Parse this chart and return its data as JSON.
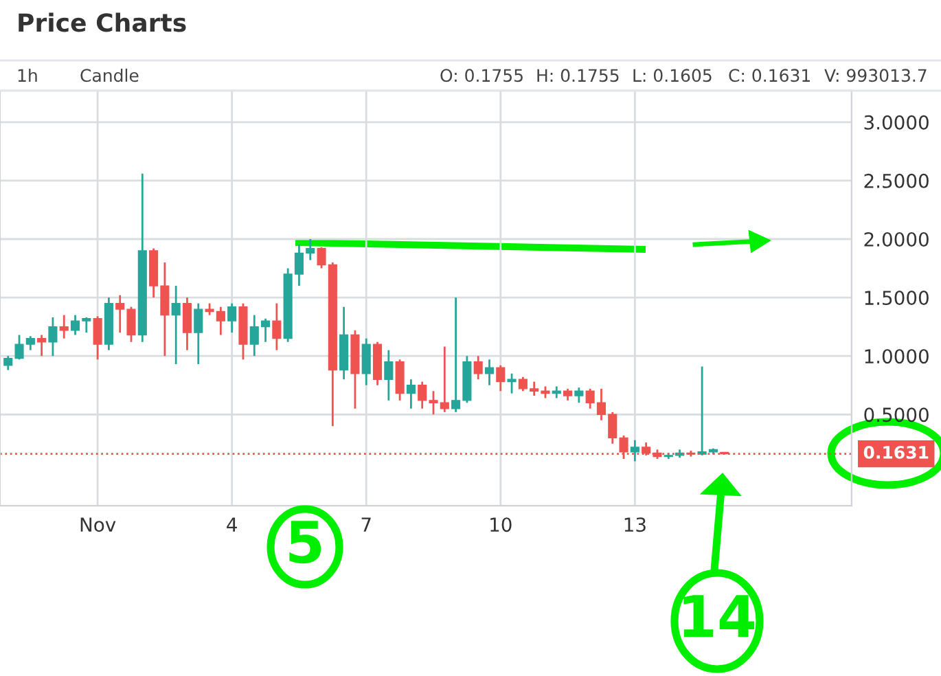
{
  "chart_data": {
    "type": "candlestick",
    "title": "Price Charts",
    "annotations": [
      "1h",
      "Candle",
      "O: 0.1755",
      "H: 0.1755",
      "L: 0.1605",
      "C: 0.1631",
      "V: 993013.7",
      "5",
      "14"
    ],
    "x": [
      -1.0,
      -0.75,
      -0.5,
      -0.25,
      0.0,
      0.25,
      0.5,
      0.75,
      1.0,
      1.25,
      1.5,
      1.75,
      2.0,
      2.25,
      2.5,
      2.75,
      3.0,
      3.25,
      3.5,
      3.75,
      4.0,
      4.25,
      4.5,
      4.75,
      5.0,
      5.25,
      5.5,
      5.75,
      6.0,
      6.25,
      6.5,
      6.75,
      7.0,
      7.25,
      7.5,
      7.75,
      8.0,
      8.25,
      8.5,
      8.75,
      9.0,
      9.25,
      9.5,
      9.75,
      10.0,
      10.25,
      10.5,
      10.75,
      11.0,
      11.25,
      11.5,
      11.75,
      12.0,
      12.25,
      12.5,
      12.75,
      13.0,
      13.25,
      13.5,
      13.75,
      14.0,
      14.25,
      14.5,
      14.75,
      15.0
    ],
    "ohlc": [
      [
        0.92,
        1.0,
        0.88,
        0.98
      ],
      [
        0.98,
        1.18,
        0.97,
        1.1
      ],
      [
        1.1,
        1.17,
        1.05,
        1.15
      ],
      [
        1.15,
        1.18,
        1.0,
        1.12
      ],
      [
        1.12,
        1.33,
        1.0,
        1.25
      ],
      [
        1.25,
        1.35,
        1.15,
        1.22
      ],
      [
        1.22,
        1.35,
        1.18,
        1.3
      ],
      [
        1.3,
        1.33,
        1.2,
        1.32
      ],
      [
        1.32,
        1.34,
        0.97,
        1.1
      ],
      [
        1.1,
        1.5,
        1.05,
        1.45
      ],
      [
        1.45,
        1.52,
        1.2,
        1.4
      ],
      [
        1.4,
        1.42,
        1.12,
        1.18
      ],
      [
        1.18,
        2.56,
        1.12,
        1.9
      ],
      [
        1.9,
        1.92,
        1.5,
        1.6
      ],
      [
        1.6,
        1.8,
        1.0,
        1.35
      ],
      [
        1.35,
        1.6,
        0.93,
        1.45
      ],
      [
        1.45,
        1.5,
        1.05,
        1.2
      ],
      [
        1.2,
        1.45,
        0.93,
        1.4
      ],
      [
        1.4,
        1.45,
        1.35,
        1.38
      ],
      [
        1.38,
        1.42,
        1.18,
        1.3
      ],
      [
        1.3,
        1.45,
        1.2,
        1.42
      ],
      [
        1.42,
        1.45,
        0.97,
        1.1
      ],
      [
        1.1,
        1.35,
        1.0,
        1.25
      ],
      [
        1.25,
        1.32,
        1.12,
        1.3
      ],
      [
        1.3,
        1.45,
        1.05,
        1.15
      ],
      [
        1.15,
        1.75,
        1.12,
        1.7
      ],
      [
        1.7,
        1.95,
        1.6,
        1.88
      ],
      [
        1.88,
        2.0,
        1.82,
        1.92
      ],
      [
        1.92,
        1.93,
        1.75,
        1.78
      ],
      [
        1.78,
        1.8,
        0.4,
        0.88
      ],
      [
        0.88,
        1.42,
        0.8,
        1.18
      ],
      [
        1.18,
        1.22,
        0.55,
        0.85
      ],
      [
        0.85,
        1.15,
        0.75,
        1.1
      ],
      [
        1.1,
        1.12,
        0.75,
        0.8
      ],
      [
        0.8,
        1.05,
        0.62,
        0.95
      ],
      [
        0.95,
        0.97,
        0.62,
        0.68
      ],
      [
        0.68,
        0.8,
        0.55,
        0.75
      ],
      [
        0.75,
        0.78,
        0.55,
        0.62
      ],
      [
        0.62,
        0.7,
        0.5,
        0.6
      ],
      [
        0.6,
        1.08,
        0.52,
        0.55
      ],
      [
        0.55,
        1.5,
        0.52,
        0.62
      ],
      [
        0.62,
        1.0,
        0.6,
        0.95
      ],
      [
        0.95,
        1.0,
        0.8,
        0.85
      ],
      [
        0.85,
        0.97,
        0.75,
        0.9
      ],
      [
        0.9,
        0.92,
        0.7,
        0.78
      ],
      [
        0.78,
        0.85,
        0.68,
        0.8
      ],
      [
        0.8,
        0.82,
        0.7,
        0.72
      ],
      [
        0.72,
        0.78,
        0.66,
        0.7
      ],
      [
        0.7,
        0.74,
        0.64,
        0.68
      ],
      [
        0.68,
        0.74,
        0.64,
        0.7
      ],
      [
        0.7,
        0.72,
        0.62,
        0.66
      ],
      [
        0.66,
        0.73,
        0.6,
        0.7
      ],
      [
        0.7,
        0.72,
        0.55,
        0.6
      ],
      [
        0.6,
        0.72,
        0.45,
        0.5
      ],
      [
        0.5,
        0.52,
        0.25,
        0.3
      ],
      [
        0.3,
        0.32,
        0.12,
        0.18
      ],
      [
        0.18,
        0.28,
        0.1,
        0.22
      ],
      [
        0.22,
        0.26,
        0.15,
        0.17
      ],
      [
        0.17,
        0.2,
        0.12,
        0.14
      ],
      [
        0.14,
        0.17,
        0.12,
        0.15
      ],
      [
        0.15,
        0.2,
        0.13,
        0.17
      ],
      [
        0.17,
        0.19,
        0.14,
        0.16
      ],
      [
        0.16,
        0.91,
        0.15,
        0.18
      ],
      [
        0.18,
        0.21,
        0.16,
        0.2
      ],
      [
        0.1755,
        0.1755,
        0.1605,
        0.1631
      ]
    ],
    "colors": [
      "#26a69a",
      "#26a69a",
      "#26a69a",
      "#ef5350",
      "#26a69a",
      "#ef5350",
      "#26a69a",
      "#26a69a",
      "#ef5350",
      "#26a69a",
      "#ef5350",
      "#ef5350",
      "#26a69a",
      "#ef5350",
      "#ef5350",
      "#26a69a",
      "#ef5350",
      "#26a69a",
      "#ef5350",
      "#ef5350",
      "#26a69a",
      "#ef5350",
      "#26a69a",
      "#26a69a",
      "#ef5350",
      "#26a69a",
      "#26a69a",
      "#26a69a",
      "#ef5350",
      "#ef5350",
      "#26a69a",
      "#ef5350",
      "#26a69a",
      "#ef5350",
      "#26a69a",
      "#ef5350",
      "#26a69a",
      "#ef5350",
      "#ef5350",
      "#ef5350",
      "#26a69a",
      "#26a69a",
      "#ef5350",
      "#26a69a",
      "#ef5350",
      "#26a69a",
      "#ef5350",
      "#ef5350",
      "#ef5350",
      "#26a69a",
      "#ef5350",
      "#26a69a",
      "#ef5350",
      "#ef5350",
      "#ef5350",
      "#ef5350",
      "#26a69a",
      "#ef5350",
      "#ef5350",
      "#26a69a",
      "#26a69a",
      "#ef5350",
      "#26a69a",
      "#26a69a",
      "#ef5350"
    ],
    "xlim": [
      -1.18,
      17.84
    ],
    "xticks": [
      {
        "value": 1,
        "label": "Nov"
      },
      {
        "value": 4,
        "label": "4"
      },
      {
        "value": 7,
        "label": "7"
      },
      {
        "value": 10,
        "label": "10"
      },
      {
        "value": 13,
        "label": "13"
      }
    ],
    "ylim": [
      -0.28,
      3.27
    ],
    "yticks": [
      {
        "value": 0.5,
        "label": "0.5000"
      },
      {
        "value": 1.0,
        "label": "1.0000"
      },
      {
        "value": 1.5,
        "label": "1.5000"
      },
      {
        "value": 2.0,
        "label": "2.0000"
      },
      {
        "value": 2.5,
        "label": "2.5000"
      },
      {
        "value": 3.0,
        "label": "3.0000"
      }
    ],
    "ref_lines": [
      {
        "axis": "y",
        "value": 0.1631,
        "label": "0.1631",
        "color": "#ef5350",
        "line_style": "dotted"
      }
    ],
    "grid": true
  }
}
